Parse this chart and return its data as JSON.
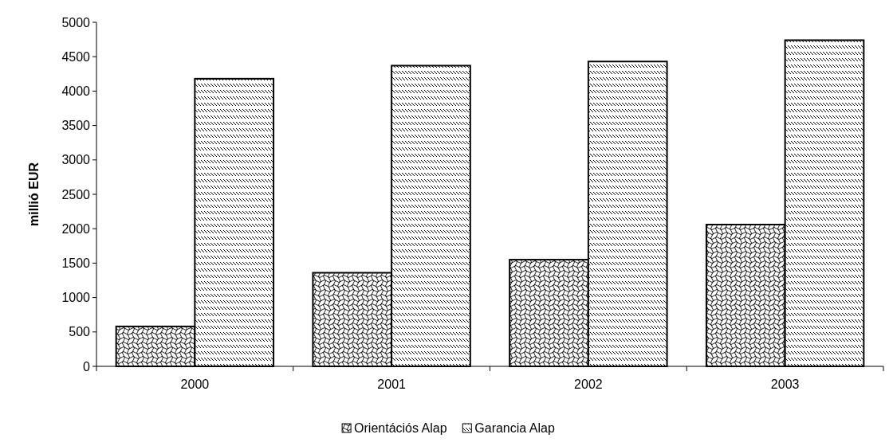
{
  "chart_data": {
    "type": "bar",
    "ylabel": "millió EUR",
    "categories": [
      "2000",
      "2001",
      "2002",
      "2003"
    ],
    "series": [
      {
        "name": "Orientációs Alap",
        "color": "#000000",
        "values": [
          580,
          1360,
          1550,
          2060
        ]
      },
      {
        "name": "Garancia Alap",
        "color": "#000000",
        "values": [
          4180,
          4370,
          4430,
          4740
        ]
      }
    ],
    "ylim": [
      0,
      5000
    ],
    "yticks": [
      0,
      500,
      1000,
      1500,
      2000,
      2500,
      3000,
      3500,
      4000,
      4500,
      5000
    ],
    "grid": false,
    "legend": "bottom"
  }
}
